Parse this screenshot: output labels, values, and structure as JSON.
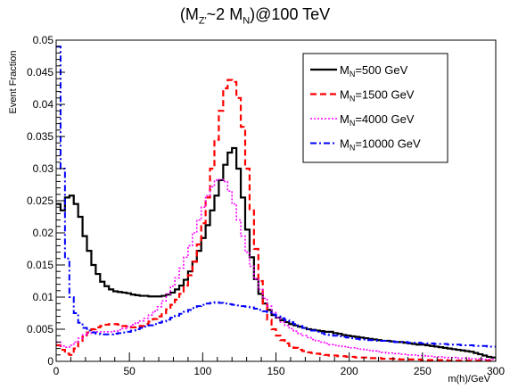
{
  "title": {
    "prefix": "(M",
    "sub1": "Z'",
    "mid": "~2 M",
    "sub2": "N",
    "suffix": ")@100 TeV"
  },
  "chart_data": {
    "type": "line",
    "title": "(MZ'~2 MN)@100 TeV",
    "xlabel": "m(h)/GeV",
    "ylabel": "Event Fraction",
    "xlim": [
      0,
      300
    ],
    "ylim": [
      0,
      0.05
    ],
    "x_ticks": [
      0,
      50,
      100,
      150,
      200,
      250,
      300
    ],
    "y_ticks": [
      0,
      0.005,
      0.01,
      0.015,
      0.02,
      0.025,
      0.03,
      0.035,
      0.04,
      0.045,
      0.05
    ],
    "grid": false,
    "legend_position": "top-right",
    "bin_width": 3,
    "series": [
      {
        "name": "M_N=500 GeV",
        "label_main": "M",
        "label_sub": "N",
        "label_tail": "=500 GeV",
        "color": "#000000",
        "style": "solid",
        "values": [
          0.0245,
          0.0235,
          0.0255,
          0.0258,
          0.0245,
          0.0225,
          0.0195,
          0.0172,
          0.015,
          0.0136,
          0.0124,
          0.0117,
          0.0112,
          0.0109,
          0.0108,
          0.0107,
          0.0106,
          0.0104,
          0.0103,
          0.0102,
          0.0102,
          0.0101,
          0.0101,
          0.0101,
          0.0102,
          0.0104,
          0.0107,
          0.0112,
          0.0118,
          0.0127,
          0.014,
          0.0155,
          0.0172,
          0.0192,
          0.0212,
          0.0235,
          0.0258,
          0.0282,
          0.0306,
          0.0325,
          0.0332,
          0.03,
          0.0255,
          0.0205,
          0.0162,
          0.0128,
          0.0105,
          0.009,
          0.008,
          0.0072,
          0.0068,
          0.0064,
          0.0061,
          0.0058,
          0.0056,
          0.0054,
          0.0052,
          0.005,
          0.0049,
          0.0048,
          0.0047,
          0.0046,
          0.0046,
          0.0044,
          0.0043,
          0.0041,
          0.004,
          0.0039,
          0.0038,
          0.0037,
          0.0036,
          0.0035,
          0.0034,
          0.0033,
          0.0032,
          0.0032,
          0.0031,
          0.003,
          0.003,
          0.0029,
          0.0028,
          0.0027,
          0.0026,
          0.0026,
          0.0025,
          0.0024,
          0.0023,
          0.0022,
          0.0021,
          0.002,
          0.0019,
          0.0018,
          0.0017,
          0.0016,
          0.0015,
          0.0013,
          0.0011,
          0.0009,
          0.0007,
          0.0006
        ]
      },
      {
        "name": "M_N=1500 GeV",
        "label_main": "M",
        "label_sub": "N",
        "label_tail": "=1500 GeV",
        "color": "#ff0000",
        "style": "dashed",
        "values": [
          0.0025,
          0.0018,
          0.0012,
          0.001,
          0.002,
          0.003,
          0.0038,
          0.0045,
          0.005,
          0.0053,
          0.0055,
          0.0057,
          0.0058,
          0.0058,
          0.0057,
          0.0055,
          0.0054,
          0.0053,
          0.0053,
          0.0055,
          0.0058,
          0.0062,
          0.0066,
          0.007,
          0.0075,
          0.0081,
          0.0088,
          0.0096,
          0.0105,
          0.0118,
          0.0134,
          0.0155,
          0.0182,
          0.0215,
          0.0255,
          0.03,
          0.0345,
          0.039,
          0.0425,
          0.0438,
          0.0435,
          0.041,
          0.0365,
          0.03,
          0.0235,
          0.0175,
          0.0125,
          0.009,
          0.0065,
          0.005,
          0.004,
          0.0033,
          0.0028,
          0.0024,
          0.0021,
          0.0018,
          0.0016,
          0.0014,
          0.0013,
          0.0012,
          0.0011,
          0.001,
          0.0009,
          0.0009,
          0.0008,
          0.0008,
          0.0007,
          0.0007,
          0.0006,
          0.0006,
          0.0006,
          0.0005,
          0.0005,
          0.0005,
          0.0004,
          0.0004,
          0.0004,
          0.0004,
          0.0003,
          0.0003,
          0.0003,
          0.0003,
          0.0003,
          0.0002,
          0.0002,
          0.0002,
          0.0002,
          0.0002,
          0.0002,
          0.0001,
          0.0001,
          0.0001,
          0.0001,
          0.0001,
          0.0001,
          0.0001,
          0.0001,
          0.0001,
          0.0001,
          0.0001
        ]
      },
      {
        "name": "M_N=4000 GeV",
        "label_main": "M",
        "label_sub": "N",
        "label_tail": "=4000 GeV",
        "color": "#ff00ff",
        "style": "dotted",
        "values": [
          0.003,
          0.0024,
          0.0022,
          0.0025,
          0.003,
          0.0036,
          0.0041,
          0.0044,
          0.0046,
          0.0046,
          0.0046,
          0.0046,
          0.0046,
          0.0047,
          0.0049,
          0.0051,
          0.0054,
          0.0057,
          0.006,
          0.0063,
          0.0067,
          0.0072,
          0.0078,
          0.0085,
          0.0094,
          0.0105,
          0.0117,
          0.013,
          0.0145,
          0.0162,
          0.018,
          0.02,
          0.022,
          0.024,
          0.0258,
          0.0272,
          0.0282,
          0.0283,
          0.028,
          0.0265,
          0.0245,
          0.022,
          0.0195,
          0.017,
          0.0148,
          0.0128,
          0.0112,
          0.0098,
          0.0086,
          0.0076,
          0.0068,
          0.0061,
          0.0056,
          0.0051,
          0.0047,
          0.0043,
          0.004,
          0.0037,
          0.0034,
          0.0032,
          0.003,
          0.0028,
          0.0026,
          0.0025,
          0.0024,
          0.0023,
          0.0022,
          0.0021,
          0.002,
          0.0019,
          0.0018,
          0.0017,
          0.0016,
          0.0015,
          0.0014,
          0.0013,
          0.0013,
          0.0012,
          0.0011,
          0.0011,
          0.001,
          0.001,
          0.0009,
          0.0009,
          0.0008,
          0.0008,
          0.0007,
          0.0007,
          0.0006,
          0.0006,
          0.0006,
          0.0005,
          0.0005,
          0.0005,
          0.0004,
          0.0004,
          0.0004,
          0.0003,
          0.0003,
          0.0003
        ]
      },
      {
        "name": "M_N=10000 GeV",
        "label_main": "M",
        "label_sub": "N",
        "label_tail": "=10000 GeV",
        "color": "#0000ff",
        "style": "dashdot",
        "values": [
          0.049,
          0.03,
          0.016,
          0.01,
          0.0075,
          0.006,
          0.0052,
          0.0048,
          0.0045,
          0.0043,
          0.0042,
          0.0042,
          0.0042,
          0.0043,
          0.0044,
          0.0045,
          0.0046,
          0.0048,
          0.005,
          0.0052,
          0.0054,
          0.0056,
          0.0058,
          0.006,
          0.0062,
          0.0065,
          0.0068,
          0.0071,
          0.0074,
          0.0077,
          0.008,
          0.0083,
          0.0086,
          0.0088,
          0.009,
          0.0091,
          0.0092,
          0.0091,
          0.009,
          0.0089,
          0.0088,
          0.0087,
          0.0086,
          0.0085,
          0.0084,
          0.0082,
          0.008,
          0.0078,
          0.0076,
          0.0073,
          0.007,
          0.0067,
          0.0064,
          0.0061,
          0.0058,
          0.0055,
          0.0052,
          0.005,
          0.0048,
          0.0046,
          0.0044,
          0.0042,
          0.0041,
          0.004,
          0.0039,
          0.0038,
          0.0037,
          0.0036,
          0.0035,
          0.0034,
          0.0034,
          0.0033,
          0.0033,
          0.0032,
          0.0032,
          0.0031,
          0.0031,
          0.003,
          0.003,
          0.003,
          0.0029,
          0.0029,
          0.0029,
          0.0028,
          0.0028,
          0.0028,
          0.0027,
          0.0027,
          0.0027,
          0.0026,
          0.0026,
          0.0026,
          0.0025,
          0.0025,
          0.0025,
          0.0024,
          0.0024,
          0.0024,
          0.0023,
          0.0023
        ]
      }
    ]
  }
}
